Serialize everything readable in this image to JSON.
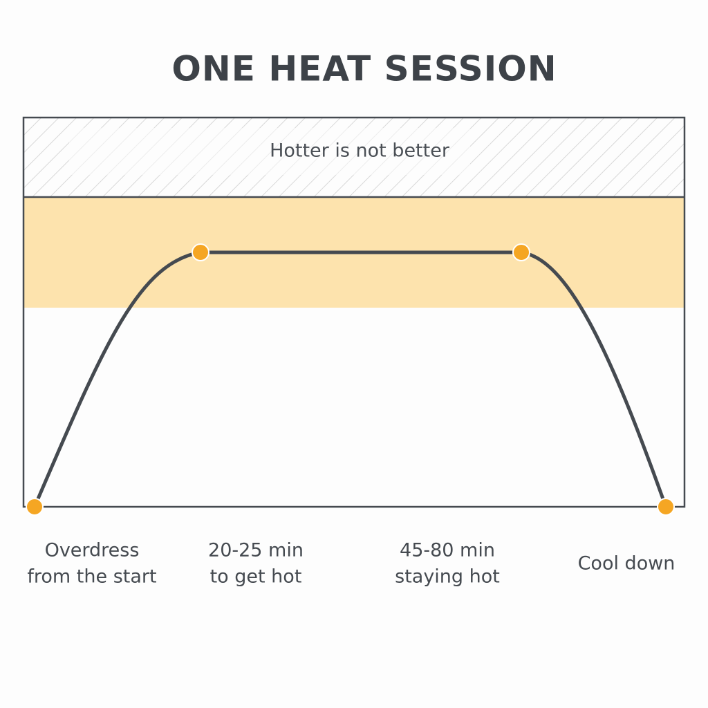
{
  "title": "ONE HEAT SESSION",
  "zone_label": "Hotter is not better",
  "stages": [
    {
      "lines": [
        "Overdress",
        "from the start"
      ]
    },
    {
      "lines": [
        "20-25 min",
        "to get hot"
      ]
    },
    {
      "lines": [
        "45-80 min",
        "staying hot"
      ]
    },
    {
      "lines": [
        "Cool down"
      ]
    }
  ]
}
